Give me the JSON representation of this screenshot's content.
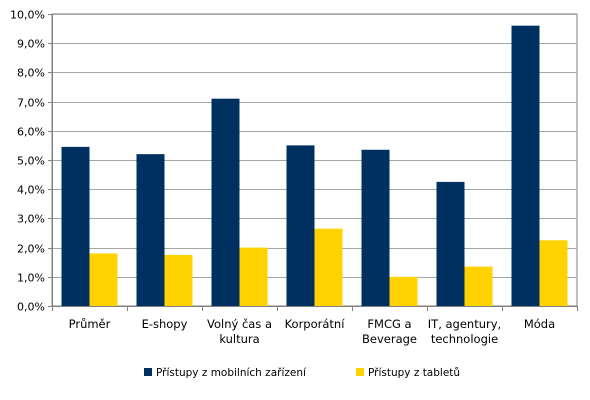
{
  "chart_data": {
    "type": "bar",
    "categories": [
      [
        "Průměr"
      ],
      [
        "E-shopy"
      ],
      [
        "Volný čas a",
        "kultura"
      ],
      [
        "Korporátní"
      ],
      [
        "FMCG a",
        "Beverage"
      ],
      [
        "IT, agentury,",
        "technologie"
      ],
      [
        "Móda"
      ]
    ],
    "series": [
      {
        "name": "Přístupy z mobilních zařízení",
        "color": "#00305f",
        "values": [
          5.45,
          5.2,
          7.1,
          5.5,
          5.35,
          4.25,
          9.6
        ]
      },
      {
        "name": "Přístupy z tabletů",
        "color": "#ffd200",
        "values": [
          1.8,
          1.75,
          2.0,
          2.65,
          1.0,
          1.35,
          2.25
        ]
      }
    ],
    "ylim": [
      0,
      10
    ],
    "yticks": [
      "0,0%",
      "1,0%",
      "2,0%",
      "3,0%",
      "4,0%",
      "5,0%",
      "6,0%",
      "7,0%",
      "8,0%",
      "9,0%",
      "10,0%"
    ],
    "grid": true,
    "legend_position": "bottom"
  }
}
